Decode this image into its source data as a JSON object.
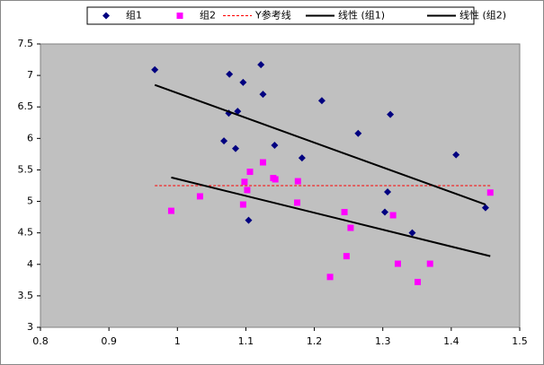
{
  "chart_data": {
    "type": "scatter",
    "xlim": [
      0.8,
      1.5
    ],
    "xticks": [
      0.8,
      0.9,
      1,
      1.1,
      1.2,
      1.3,
      1.4,
      1.5
    ],
    "ylim": [
      3,
      7.5
    ],
    "yticks": [
      3,
      3.5,
      4,
      4.5,
      5,
      5.5,
      6,
      6.5,
      7,
      7.5
    ],
    "grid": false,
    "legend": "top",
    "series": [
      {
        "name": "组1",
        "color": "#000080",
        "style": "diamond",
        "x": [
          0.967,
          1.076,
          1.096,
          1.122,
          1.125,
          1.088,
          1.075,
          1.211,
          1.311,
          1.068,
          1.085,
          1.142,
          1.264,
          1.182,
          1.407,
          1.307,
          1.303,
          1.343,
          1.104,
          1.45
        ],
        "values": [
          7.09,
          7.02,
          6.89,
          7.17,
          6.7,
          6.43,
          6.4,
          6.6,
          6.38,
          5.96,
          5.84,
          5.89,
          6.08,
          5.69,
          5.74,
          5.15,
          4.83,
          4.5,
          4.7,
          4.9
        ]
      },
      {
        "name": "组2",
        "color": "#ff00ff",
        "style": "square",
        "x": [
          0.991,
          1.033,
          1.125,
          1.106,
          1.098,
          1.102,
          1.096,
          1.14,
          1.143,
          1.176,
          1.175,
          1.244,
          1.253,
          1.247,
          1.223,
          1.315,
          1.322,
          1.369,
          1.351,
          1.457
        ],
        "values": [
          4.85,
          5.08,
          5.62,
          5.47,
          5.31,
          5.18,
          4.95,
          5.37,
          5.35,
          5.32,
          4.98,
          4.83,
          4.58,
          4.13,
          3.8,
          4.78,
          4.01,
          4.01,
          3.72,
          5.14
        ]
      },
      {
        "name": "Y参考线",
        "color": "#ff0000",
        "style": "dashed",
        "x": [
          0.967,
          1.457
        ],
        "values": [
          5.25,
          5.25
        ]
      },
      {
        "name": "线性 (组1)",
        "color": "#000000",
        "style": "solid",
        "x": [
          0.967,
          1.45
        ],
        "values": [
          6.85,
          4.95
        ]
      },
      {
        "name": "线性 (组2)",
        "color": "#000000",
        "style": "solid",
        "x": [
          0.991,
          1.457
        ],
        "values": [
          5.38,
          4.13
        ]
      }
    ]
  }
}
